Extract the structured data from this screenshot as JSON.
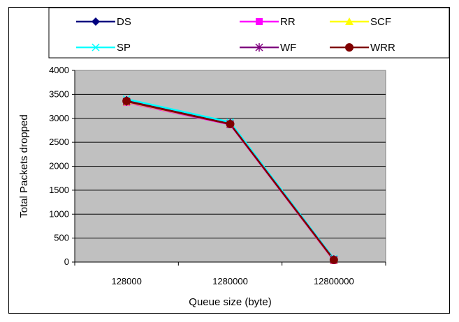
{
  "chart_data": {
    "type": "line",
    "title": "",
    "xlabel": "Queue size (byte)",
    "ylabel": "Total Packets dropped",
    "categories": [
      "128000",
      "1280000",
      "12800000"
    ],
    "ylim": [
      0,
      4000
    ],
    "yticks": [
      "0",
      "500",
      "1000",
      "1500",
      "2000",
      "2500",
      "3000",
      "3500",
      "4000"
    ],
    "grid": true,
    "legend_position": "top",
    "plot_background": "#c0c0c0",
    "series": [
      {
        "name": "DS",
        "values": [
          3380,
          2900,
          60
        ],
        "color": "#000080",
        "marker": "diamond"
      },
      {
        "name": "RR",
        "values": [
          3330,
          2870,
          30
        ],
        "color": "#ff00ff",
        "marker": "square"
      },
      {
        "name": "SCF",
        "values": [
          3340,
          2880,
          40
        ],
        "color": "#ffff00",
        "marker": "triangle"
      },
      {
        "name": "SP",
        "values": [
          3400,
          2920,
          70
        ],
        "color": "#00ffff",
        "marker": "x"
      },
      {
        "name": "WF",
        "values": [
          3350,
          2880,
          50
        ],
        "color": "#800080",
        "marker": "star"
      },
      {
        "name": "WRR",
        "values": [
          3360,
          2880,
          45
        ],
        "color": "#800000",
        "marker": "circle"
      }
    ]
  }
}
